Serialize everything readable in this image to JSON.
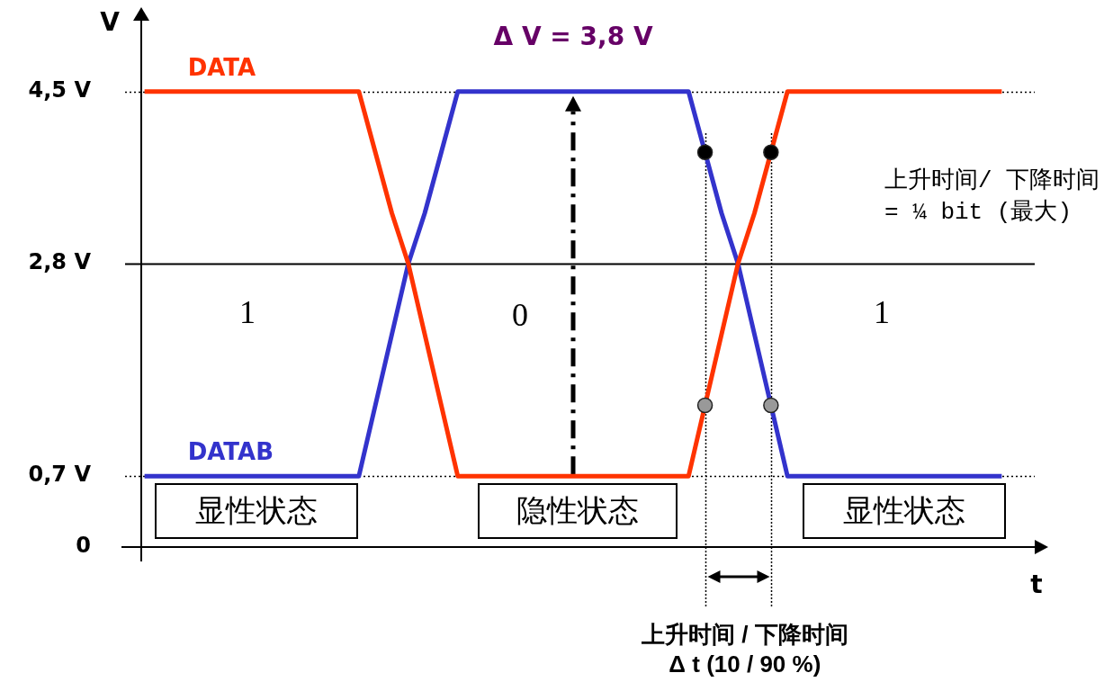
{
  "chart_data": {
    "type": "line",
    "xlabel": "t",
    "ylabel": "V",
    "annotations": [
      "Δ V = 3,8 V",
      "1",
      "0",
      "1",
      "显性状态",
      "隐性状态",
      "显性状态",
      "上升时间/ 下降时间\n= ¼ bit (最大)",
      "上升时间 / 下降时间\nΔ t (10 / 90 %)"
    ],
    "categories": [
      null,
      null,
      null,
      null,
      null,
      null,
      null,
      null,
      null,
      null,
      null,
      null,
      null,
      null,
      null,
      null,
      null,
      null,
      null,
      null,
      null,
      null,
      null,
      null,
      null,
      null,
      null,
      null,
      null,
      null,
      null,
      null,
      null,
      null,
      null,
      null,
      null,
      null,
      null,
      null,
      null,
      null,
      null,
      null,
      null,
      null,
      null,
      null,
      null,
      null,
      null,
      null,
      null
    ],
    "series": [
      {
        "name": "DATA",
        "color": "#ff3300",
        "marker": "none",
        "values": [
          4.5,
          4.5,
          4.5,
          4.5,
          4.5,
          4.5,
          4.5,
          4.5,
          4.5,
          4.5,
          4.5,
          4.5,
          4.5,
          4.5,
          3.9,
          3.3,
          2.8,
          2.1,
          1.4,
          0.7,
          0.7,
          0.7,
          0.7,
          0.7,
          0.7,
          0.7,
          0.7,
          0.7,
          0.7,
          0.7,
          0.7,
          0.7,
          0.7,
          0.7,
          1.4,
          2.1,
          2.8,
          3.3,
          3.9,
          4.5,
          4.5,
          4.5,
          4.5,
          4.5,
          4.5,
          4.5,
          4.5,
          4.5,
          4.5,
          4.5,
          4.5,
          4.5,
          4.5
        ]
      },
      {
        "name": "DATAB",
        "color": "#3333cc",
        "marker": "none",
        "values": [
          0.7,
          0.7,
          0.7,
          0.7,
          0.7,
          0.7,
          0.7,
          0.7,
          0.7,
          0.7,
          0.7,
          0.7,
          0.7,
          0.7,
          1.4,
          2.1,
          2.8,
          3.3,
          3.9,
          4.5,
          4.5,
          4.5,
          4.5,
          4.5,
          4.5,
          4.5,
          4.5,
          4.5,
          4.5,
          4.5,
          4.5,
          4.5,
          4.5,
          4.5,
          3.9,
          3.3,
          2.8,
          2.1,
          1.4,
          0.7,
          0.7,
          0.7,
          0.7,
          0.7,
          0.7,
          0.7,
          0.7,
          0.7,
          0.7,
          0.7,
          0.7,
          0.7,
          0.7
        ]
      },
      {
        "type": "scatter",
        "color": "#000000",
        "marker": "circle",
        "values": [
          null,
          null,
          null,
          null,
          null,
          null,
          null,
          null,
          null,
          null,
          null,
          null,
          null,
          null,
          null,
          null,
          null,
          null,
          null,
          null,
          null,
          null,
          null,
          null,
          null,
          null,
          null,
          null,
          null,
          null,
          null,
          null,
          null,
          null,
          3.9,
          null,
          null,
          null,
          3.9,
          null,
          null,
          null,
          null,
          null,
          null,
          null,
          null,
          null,
          null,
          null,
          null,
          null,
          null
        ]
      },
      {
        "type": "scatter",
        "color": "#999999",
        "marker": "circle",
        "values": [
          null,
          null,
          null,
          null,
          null,
          null,
          null,
          null,
          null,
          null,
          null,
          null,
          null,
          null,
          null,
          null,
          null,
          null,
          null,
          null,
          null,
          null,
          null,
          null,
          null,
          null,
          null,
          null,
          null,
          null,
          null,
          null,
          null,
          null,
          1.4,
          null,
          null,
          null,
          1.4,
          null,
          null,
          null,
          null,
          null,
          null,
          null,
          null,
          null,
          null,
          null,
          null,
          null,
          null
        ]
      }
    ],
    "ylim": [
      0,
      5.2
    ],
    "yticks": [
      0,
      {
        "value": 0.7,
        "label": "0,7 V"
      },
      {
        "value": 2.8,
        "label": "2,8 V"
      },
      {
        "value": 4.5,
        "label": "4,5 V"
      }
    ],
    "ref_lines": [
      {
        "axis": "y",
        "value": 4.5,
        "line_style": "dotted",
        "color": "#000000"
      },
      {
        "axis": "y",
        "value": 2.8,
        "line_style": "solid",
        "color": "#000000"
      },
      {
        "axis": "y",
        "value": 0.7,
        "line_style": "dotted",
        "color": "#000000"
      }
    ],
    "tick_labels": "y"
  }
}
